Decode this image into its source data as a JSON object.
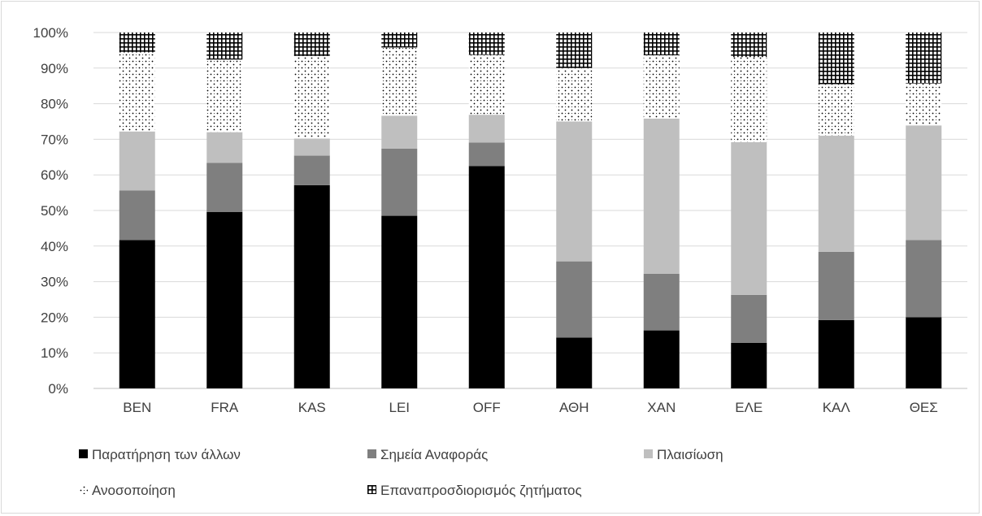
{
  "chart_data": {
    "type": "bar",
    "stacked": true,
    "percent": true,
    "categories": [
      "BEN",
      "FRA",
      "KAS",
      "LEI",
      "OFF",
      "ΑΘΗ",
      "ΧΑΝ",
      "ΕΛΕ",
      "ΚΑΛ",
      "ΘΕΣ"
    ],
    "series": [
      {
        "name": "Παρατήρηση των άλλων",
        "pattern": "solid-black",
        "values": [
          41.7,
          49.6,
          57.1,
          48.5,
          62.5,
          14.3,
          16.3,
          12.8,
          19.2,
          20.0
        ]
      },
      {
        "name": "Σημεία Αναφοράς",
        "pattern": "solid-darkgray",
        "values": [
          13.9,
          13.8,
          8.3,
          18.9,
          6.6,
          21.4,
          15.9,
          13.5,
          19.2,
          21.7
        ]
      },
      {
        "name": "Πλαισίωση",
        "pattern": "solid-lightgray",
        "values": [
          16.6,
          8.6,
          4.8,
          9.2,
          7.8,
          39.3,
          43.6,
          42.9,
          32.6,
          32.2
        ]
      },
      {
        "name": "Ανοσοποίηση",
        "pattern": "dots",
        "values": [
          22.2,
          20.4,
          23.2,
          19.2,
          16.8,
          15.0,
          17.8,
          23.9,
          14.5,
          11.8
        ]
      },
      {
        "name": "Επαναπροσδιορισμός ζητήματος",
        "pattern": "grid",
        "values": [
          5.6,
          7.6,
          6.6,
          4.2,
          6.3,
          10.0,
          6.4,
          6.9,
          14.5,
          14.3
        ]
      }
    ],
    "yticks": [
      "0%",
      "10%",
      "20%",
      "30%",
      "40%",
      "50%",
      "60%",
      "70%",
      "80%",
      "90%",
      "100%"
    ],
    "ylim": [
      0,
      100
    ],
    "title": "",
    "xlabel": "",
    "ylabel": "",
    "grid": true,
    "legend_position": "bottom",
    "colors": {
      "black": "#000000",
      "dark": "#7f7f7f",
      "light": "#bfbfbf",
      "grid": "#d9d9d9",
      "axis": "#bfbfbf",
      "text": "#404040"
    }
  }
}
